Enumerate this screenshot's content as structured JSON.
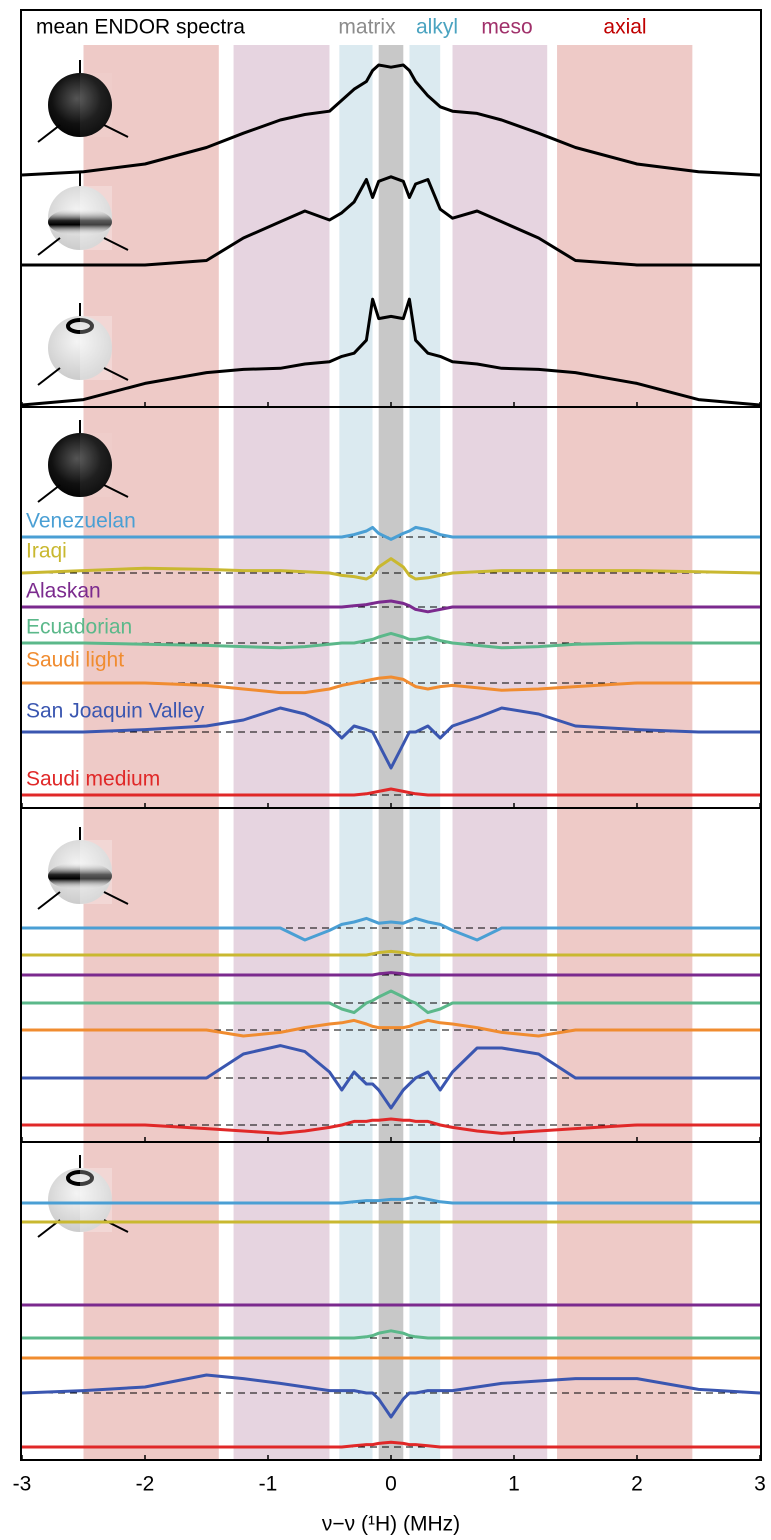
{
  "chart_data": [
    {
      "type": "line",
      "title": "mean ENDOR spectra",
      "regions": [
        {
          "name": "matrix",
          "color": "#8c8c8c",
          "fill": "#c8c8c8",
          "ranges": [
            [
              -0.1,
              0.1
            ]
          ]
        },
        {
          "name": "alkyl",
          "color": "#4aa3c0",
          "fill": "#dbeaf0",
          "ranges": [
            [
              -0.42,
              -0.15
            ],
            [
              0.15,
              0.4
            ]
          ]
        },
        {
          "name": "meso",
          "color": "#a0306a",
          "fill": "#e6d4e0",
          "ranges": [
            [
              -1.28,
              -0.5
            ],
            [
              0.5,
              1.27
            ]
          ]
        },
        {
          "name": "axial",
          "color": "#c00000",
          "fill": "#eecac7",
          "ranges": [
            [
              -2.5,
              -1.4
            ],
            [
              1.35,
              2.45
            ]
          ]
        }
      ],
      "x": [
        -3,
        -2.5,
        -2,
        -1.5,
        -1.2,
        -0.9,
        -0.7,
        -0.5,
        -0.4,
        -0.3,
        -0.2,
        -0.15,
        -0.1,
        0,
        0.1,
        0.15,
        0.2,
        0.3,
        0.4,
        0.5,
        0.7,
        0.9,
        1.2,
        1.5,
        2,
        2.5,
        3
      ],
      "series": [
        {
          "color": "#000000",
          "values": [
            0,
            0.03,
            0.1,
            0.25,
            0.38,
            0.5,
            0.55,
            0.58,
            0.68,
            0.78,
            0.85,
            0.95,
            1.0,
            0.98,
            1.0,
            0.95,
            0.85,
            0.72,
            0.62,
            0.58,
            0.56,
            0.5,
            0.38,
            0.25,
            0.1,
            0.03,
            0
          ]
        },
        {
          "color": "#000000",
          "values": [
            0,
            0,
            0,
            0.05,
            0.3,
            0.48,
            0.6,
            0.5,
            0.58,
            0.7,
            0.95,
            0.75,
            0.93,
            0.98,
            0.93,
            0.75,
            0.9,
            0.95,
            0.62,
            0.52,
            0.6,
            0.48,
            0.3,
            0.05,
            0,
            0,
            0
          ]
        },
        {
          "color": "#000000",
          "values": [
            0,
            0.05,
            0.2,
            0.3,
            0.33,
            0.34,
            0.38,
            0.4,
            0.45,
            0.48,
            0.6,
            0.98,
            0.8,
            0.82,
            0.8,
            0.98,
            0.6,
            0.48,
            0.45,
            0.4,
            0.38,
            0.34,
            0.33,
            0.3,
            0.2,
            0.05,
            0
          ]
        }
      ]
    },
    {
      "type": "line",
      "x": [
        -3,
        -2.5,
        -2,
        -1.5,
        -1.2,
        -0.9,
        -0.7,
        -0.5,
        -0.4,
        -0.3,
        -0.2,
        -0.15,
        -0.1,
        0,
        0.1,
        0.15,
        0.2,
        0.3,
        0.4,
        0.5,
        0.7,
        0.9,
        1.2,
        1.5,
        2,
        2.5,
        3
      ],
      "series": [
        {
          "name": "Venezuelan",
          "color": "#4a9fd4",
          "values": [
            0,
            0,
            0,
            0,
            0,
            0,
            0,
            0,
            0,
            0.02,
            0.05,
            0.08,
            0.03,
            -0.02,
            0.03,
            0.05,
            0.08,
            0.06,
            0.02,
            0,
            0,
            0,
            0,
            0,
            0,
            0,
            0
          ]
        },
        {
          "name": "Iraqi",
          "color": "#c9b830",
          "values": [
            0,
            0.02,
            0.04,
            0.03,
            0.02,
            0.02,
            0.01,
            0,
            -0.02,
            -0.03,
            -0.05,
            -0.02,
            0.05,
            0.12,
            0.05,
            -0.02,
            -0.05,
            -0.04,
            -0.02,
            0,
            0.01,
            0.02,
            0.02,
            0.02,
            0.02,
            0.01,
            0
          ]
        },
        {
          "name": "Alaskan",
          "color": "#7b2a8e",
          "values": [
            0,
            0,
            0,
            0,
            0,
            0,
            0,
            0,
            0,
            0.01,
            0.02,
            0.03,
            0.04,
            0.05,
            0.03,
            0.01,
            -0.02,
            -0.04,
            -0.02,
            0,
            0,
            0,
            0,
            0,
            0,
            0,
            0
          ]
        },
        {
          "name": "Ecuadorian",
          "color": "#5bb88a",
          "values": [
            0,
            0,
            -0.01,
            -0.02,
            -0.03,
            -0.04,
            -0.03,
            -0.01,
            0,
            0,
            0.02,
            0.03,
            0.05,
            0.08,
            0.05,
            0.03,
            0.03,
            0.05,
            0.02,
            0,
            -0.02,
            -0.04,
            -0.03,
            -0.01,
            0,
            0,
            0
          ]
        },
        {
          "name": "Saudi light",
          "color": "#f08c30",
          "values": [
            0,
            0,
            0,
            -0.02,
            -0.05,
            -0.08,
            -0.08,
            -0.05,
            -0.02,
            0,
            0.02,
            0.03,
            0.04,
            0.05,
            0.03,
            0,
            -0.03,
            -0.05,
            -0.03,
            -0.02,
            -0.04,
            -0.06,
            -0.05,
            -0.03,
            0,
            0,
            0
          ]
        },
        {
          "name": "San Joaquin Valley",
          "color": "#3a56b0",
          "values": [
            0,
            0,
            0.02,
            0.05,
            0.1,
            0.2,
            0.15,
            0.05,
            -0.05,
            0.05,
            0.02,
            0,
            -0.1,
            -0.3,
            -0.1,
            0,
            0,
            0.05,
            -0.05,
            0.05,
            0.12,
            0.2,
            0.15,
            0.05,
            0.02,
            0,
            0
          ]
        },
        {
          "name": "Saudi medium",
          "color": "#e02828",
          "values": [
            0,
            0,
            0,
            0,
            0,
            0,
            0,
            0,
            0,
            0,
            0.01,
            0.02,
            0.03,
            0.05,
            0.03,
            0.02,
            0.01,
            0,
            0,
            0,
            0,
            0,
            0,
            0,
            0,
            0,
            0
          ]
        }
      ]
    },
    {
      "type": "line",
      "x": [
        -3,
        -2.5,
        -2,
        -1.5,
        -1.2,
        -0.9,
        -0.7,
        -0.5,
        -0.4,
        -0.3,
        -0.2,
        -0.15,
        -0.1,
        0,
        0.1,
        0.15,
        0.2,
        0.3,
        0.4,
        0.5,
        0.7,
        0.9,
        1.2,
        1.5,
        2,
        2.5,
        3
      ],
      "series": [
        {
          "color": "#4a9fd4",
          "values": [
            0,
            0,
            0,
            0,
            0,
            0,
            -0.1,
            -0.02,
            0.03,
            0.05,
            0.08,
            0.06,
            0.04,
            0.05,
            0.04,
            0.06,
            0.08,
            0.05,
            0.03,
            -0.02,
            -0.1,
            0,
            0,
            0,
            0,
            0,
            0
          ]
        },
        {
          "color": "#c9b830",
          "values": [
            0,
            0,
            0,
            0,
            0,
            0,
            0,
            0,
            0,
            0,
            0,
            0.01,
            0.02,
            0.03,
            0.02,
            0.01,
            0,
            0,
            0,
            0,
            0,
            0,
            0,
            0,
            0,
            0,
            0
          ]
        },
        {
          "color": "#7b2a8e",
          "values": [
            0,
            0,
            0,
            0,
            0,
            0,
            0,
            0,
            0,
            0,
            0,
            0,
            0.01,
            0.02,
            0.01,
            0,
            0,
            0,
            0,
            0,
            0,
            0,
            0,
            0,
            0,
            0,
            0
          ]
        },
        {
          "color": "#5bb88a",
          "values": [
            0,
            0,
            0,
            0,
            0,
            0,
            0,
            0,
            -0.05,
            -0.08,
            0,
            0.02,
            0.05,
            0.1,
            0.05,
            0.02,
            0,
            -0.08,
            -0.05,
            0,
            0,
            0,
            0,
            0,
            0,
            0,
            0
          ]
        },
        {
          "color": "#f08c30",
          "values": [
            0,
            0,
            0,
            0,
            -0.05,
            -0.02,
            0.02,
            0.05,
            0.06,
            0.08,
            0.05,
            0.03,
            0.02,
            0.02,
            0.02,
            0.03,
            0.05,
            0.08,
            0.06,
            0.05,
            0.02,
            -0.02,
            -0.05,
            0,
            0,
            0,
            0
          ]
        },
        {
          "color": "#3a56b0",
          "values": [
            0,
            0,
            0,
            0,
            0.2,
            0.27,
            0.22,
            0.05,
            -0.1,
            0.05,
            -0.05,
            -0.05,
            -0.1,
            -0.25,
            -0.1,
            -0.05,
            0,
            0.05,
            -0.1,
            0.05,
            0.25,
            0.25,
            0.2,
            0,
            0,
            0,
            0
          ]
        },
        {
          "color": "#e02828",
          "values": [
            0,
            0,
            0,
            -0.03,
            -0.05,
            -0.07,
            -0.05,
            -0.02,
            0,
            0.03,
            0.03,
            0.04,
            0.04,
            0.05,
            0.04,
            0.04,
            0.03,
            0.03,
            0,
            -0.02,
            -0.05,
            -0.07,
            -0.05,
            -0.03,
            0,
            0,
            0
          ]
        }
      ]
    },
    {
      "type": "line",
      "xlabel": "ν−ν (¹H) (MHz)",
      "xlim": [
        -3,
        3
      ],
      "xticks": [
        -3,
        -2,
        -1,
        0,
        1,
        2,
        3
      ],
      "x": [
        -3,
        -2.5,
        -2,
        -1.5,
        -1.2,
        -0.9,
        -0.7,
        -0.5,
        -0.4,
        -0.3,
        -0.2,
        -0.15,
        -0.1,
        0,
        0.1,
        0.15,
        0.2,
        0.3,
        0.4,
        0.5,
        0.7,
        0.9,
        1.2,
        1.5,
        2,
        2.5,
        3
      ],
      "series": [
        {
          "color": "#4a9fd4",
          "values": [
            0,
            0,
            0,
            0,
            0,
            0,
            0,
            0,
            0,
            0.01,
            0.02,
            0.02,
            0.02,
            0.03,
            0.03,
            0.04,
            0.05,
            0.03,
            0.01,
            0,
            0,
            0,
            0,
            0,
            0,
            0,
            0
          ]
        },
        {
          "color": "#c9b830",
          "values": [
            0,
            0,
            0,
            0,
            0,
            0,
            0,
            0,
            0,
            0,
            0,
            0,
            0,
            0,
            0,
            0,
            0,
            0,
            0,
            0,
            0,
            0,
            0,
            0,
            0,
            0,
            0
          ]
        },
        {
          "color": "#7b2a8e",
          "values": [
            0,
            0,
            0,
            0,
            0,
            0,
            0,
            0,
            0,
            0,
            0,
            0,
            0,
            0,
            0,
            0,
            0,
            0,
            0,
            0,
            0,
            0,
            0,
            0,
            0,
            0,
            0
          ]
        },
        {
          "color": "#5bb88a",
          "values": [
            0,
            0,
            0,
            0,
            0,
            0,
            0,
            0,
            0,
            0,
            0.01,
            0.02,
            0.04,
            0.06,
            0.04,
            0.02,
            0.01,
            0,
            0,
            0,
            0,
            0,
            0,
            0,
            0,
            0,
            0
          ]
        },
        {
          "color": "#f08c30",
          "values": [
            0,
            0,
            0,
            0,
            0,
            0,
            0,
            0,
            0,
            0,
            0,
            0,
            0,
            0,
            0,
            0,
            0,
            0,
            0,
            0,
            0,
            0,
            0,
            0,
            0,
            0,
            0
          ]
        },
        {
          "color": "#3a56b0",
          "values": [
            0,
            0.02,
            0.05,
            0.15,
            0.12,
            0.08,
            0.05,
            0.02,
            0.02,
            0.02,
            0,
            0,
            -0.05,
            -0.2,
            -0.05,
            0,
            0,
            0.02,
            0.02,
            0.02,
            0.05,
            0.08,
            0.1,
            0.12,
            0.12,
            0.03,
            0
          ]
        },
        {
          "color": "#e02828",
          "values": [
            0,
            0,
            0,
            0,
            0,
            0,
            0,
            0,
            0,
            0.01,
            0.02,
            0.02,
            0.03,
            0.04,
            0.03,
            0.02,
            0.02,
            0.01,
            0,
            0,
            0,
            0,
            0,
            0,
            0,
            0,
            0
          ]
        }
      ]
    }
  ]
}
